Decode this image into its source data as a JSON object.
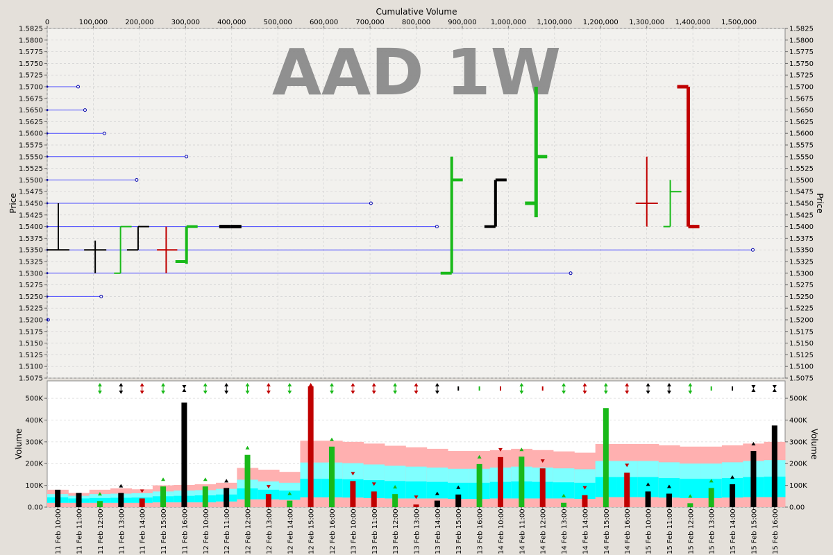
{
  "chart_data": {
    "type": "bar",
    "watermark": "AAD 1W",
    "colors": {
      "up": "#19b919",
      "down": "#c00000",
      "neutral": "#000000",
      "level_line": "#4a4aff",
      "band_outer": "#ffb0b0",
      "band_mid": "#80ffff",
      "band_inner": "#00ffff"
    },
    "price_panel": {
      "title_top": "Cumulative Volume",
      "ylabel": "Price",
      "ylim": [
        1.5075,
        1.5825
      ],
      "y_ticks": [
        "1.5075",
        "1.5100",
        "1.5125",
        "1.5150",
        "1.5175",
        "1.5200",
        "1.5225",
        "1.5250",
        "1.5275",
        "1.5300",
        "1.5325",
        "1.5350",
        "1.5375",
        "1.5400",
        "1.5425",
        "1.5450",
        "1.5475",
        "1.5500",
        "1.5525",
        "1.5550",
        "1.5575",
        "1.5600",
        "1.5625",
        "1.5650",
        "1.5675",
        "1.5700",
        "1.5725",
        "1.5750",
        "1.5775",
        "1.5800",
        "1.5825"
      ],
      "xlim": [
        0,
        1600000
      ],
      "x_ticks": [
        "0",
        "100,000",
        "200,000",
        "300,000",
        "400,000",
        "500,000",
        "600,000",
        "700,000",
        "800,000",
        "900,000",
        "1,000,000",
        "1,100,000",
        "1,200,000",
        "1,300,000",
        "1,400,000",
        "1,500,000"
      ],
      "level_lines": [
        {
          "price": 1.57,
          "volume": 67000
        },
        {
          "price": 1.565,
          "volume": 82000
        },
        {
          "price": 1.56,
          "volume": 124000
        },
        {
          "price": 1.555,
          "volume": 302000
        },
        {
          "price": 1.55,
          "volume": 194000
        },
        {
          "price": 1.545,
          "volume": 702000
        },
        {
          "price": 1.54,
          "volume": 845000
        },
        {
          "price": 1.535,
          "volume": 1530000
        },
        {
          "price": 1.53,
          "volume": 1135000
        },
        {
          "price": 1.525,
          "volume": 117000
        },
        {
          "price": 1.52,
          "volume": 2000
        }
      ]
    },
    "volume_panel": {
      "ylabel": "Volume",
      "ylim": [
        0,
        580000
      ],
      "y_ticks": [
        "0.00",
        "100K",
        "200K",
        "300K",
        "400K",
        "500K"
      ],
      "x_ticks": [
        "11 Feb 10:00",
        "11 Feb 11:00",
        "11 Feb 12:00",
        "11 Feb 13:00",
        "11 Feb 14:00",
        "11 Feb 15:00",
        "11 Feb 16:00",
        "12 Feb 10:00",
        "12 Feb 11:00",
        "12 Feb 12:00",
        "12 Feb 13:00",
        "12 Feb 14:00",
        "12 Feb 15:00",
        "12 Feb 16:00",
        "13 Feb 10:00",
        "13 Feb 11:00",
        "13 Feb 12:00",
        "13 Feb 13:00",
        "13 Feb 14:00",
        "13 Feb 15:00",
        "13 Feb 16:00",
        "14 Feb 10:00",
        "14 Feb 11:00",
        "14 Feb 12:00",
        "14 Feb 13:00",
        "14 Feb 14:00",
        "14 Feb 15:00",
        "14 Feb 16:00",
        "15 Feb 10:00",
        "15 Feb 11:00",
        "15 Feb 12:00",
        "15 Feb 13:00",
        "15 Feb 14:00",
        "15 Feb 15:00",
        "15 Feb 16:00"
      ]
    },
    "bars": [
      {
        "label": "11 Feb 10:00",
        "open": 1.535,
        "high": 1.545,
        "low": 1.535,
        "close": 1.535,
        "volume": 80000,
        "color": "neutral",
        "band": [
          20000,
          45000,
          60000,
          80000
        ],
        "arrow": "none"
      },
      {
        "label": "11 Feb 11:00",
        "open": 1.535,
        "high": 1.537,
        "low": 1.53,
        "close": 1.535,
        "volume": 65000,
        "color": "neutral",
        "band": [
          20000,
          40000,
          52000,
          65000
        ],
        "arrow": "none"
      },
      {
        "label": "11 Feb 12:00",
        "open": 1.53,
        "high": 1.54,
        "low": 1.53,
        "close": 1.54,
        "volume": 28000,
        "color": "up",
        "band": [
          20000,
          42000,
          60000,
          80000
        ],
        "arrow": "updown"
      },
      {
        "label": "11 Feb 13:00",
        "open": 1.535,
        "high": 1.54,
        "low": 1.535,
        "close": 1.54,
        "volume": 65000,
        "color": "neutral",
        "band": [
          20000,
          43000,
          62000,
          86000
        ],
        "arrow": "updown"
      },
      {
        "label": "11 Feb 14:00",
        "open": 1.535,
        "high": 1.54,
        "low": 1.53,
        "close": 1.535,
        "volume": 40000,
        "color": "down",
        "band": [
          20000,
          44000,
          64000,
          82000
        ],
        "arrow": "updown"
      },
      {
        "label": "11 Feb 15:00",
        "open": 1.5325,
        "high": 1.54,
        "low": 1.532,
        "close": 1.54,
        "volume": 95000,
        "color": "up",
        "band": [
          22000,
          50000,
          72000,
          100000
        ],
        "arrow": "updown"
      },
      {
        "label": "11 Feb 16:00",
        "open": 1.54,
        "high": 1.54,
        "low": 1.54,
        "close": 1.54,
        "volume": 480000,
        "color": "neutral",
        "band": [
          22000,
          52000,
          76000,
          102000
        ],
        "arrow": "downup"
      },
      {
        "label": "12 Feb 10:00",
        "open": 1.53,
        "high": 1.555,
        "low": 1.53,
        "close": 1.55,
        "volume": 95000,
        "color": "up",
        "band": [
          22000,
          54000,
          78000,
          105000
        ],
        "arrow": "updown"
      },
      {
        "label": "12 Feb 11:00",
        "open": 1.54,
        "high": 1.55,
        "low": 1.54,
        "close": 1.55,
        "volume": 88000,
        "color": "neutral",
        "band": [
          26000,
          58000,
          84000,
          112000
        ],
        "arrow": "updown"
      },
      {
        "label": "12 Feb 12:00",
        "open": 1.545,
        "high": 1.57,
        "low": 1.542,
        "close": 1.555,
        "volume": 240000,
        "color": "up",
        "band": [
          36000,
          86000,
          126000,
          180000
        ],
        "arrow": "updown"
      },
      {
        "label": "12 Feb 13:00",
        "open": 1.545,
        "high": 1.555,
        "low": 1.54,
        "close": 1.545,
        "volume": 60000,
        "color": "down",
        "band": [
          36000,
          80000,
          118000,
          172000
        ],
        "arrow": "updown"
      },
      {
        "label": "12 Feb 14:00",
        "open": 1.54,
        "high": 1.55,
        "low": 1.54,
        "close": 1.5475,
        "volume": 30000,
        "color": "up",
        "band": [
          34000,
          76000,
          112000,
          162000
        ],
        "arrow": "updown"
      },
      {
        "label": "12 Feb 15:00",
        "open": 1.57,
        "high": 1.57,
        "low": 1.54,
        "close": 1.54,
        "volume": 555000,
        "color": "down",
        "band": [
          45000,
          130000,
          205000,
          305000
        ],
        "arrow": "updown"
      },
      {
        "label": "12 Feb 16:00",
        "open": 1.54,
        "high": 1.545,
        "low": 1.54,
        "close": 1.545,
        "volume": 278000,
        "color": "up",
        "band": [
          45000,
          130000,
          205000,
          305000
        ],
        "arrow": "updown"
      },
      {
        "label": "13 Feb 10:00",
        "open": 1.565,
        "high": 1.565,
        "low": 1.54,
        "close": 1.54,
        "volume": 120000,
        "color": "down",
        "band": [
          44000,
          128000,
          202000,
          300000
        ],
        "arrow": "updown"
      },
      {
        "label": "13 Feb 11:00",
        "open": 1.545,
        "high": 1.545,
        "low": 1.53,
        "close": 1.53,
        "volume": 72000,
        "color": "down",
        "band": [
          42000,
          124000,
          196000,
          292000
        ],
        "arrow": "updown"
      },
      {
        "label": "13 Feb 12:00",
        "open": 1.535,
        "high": 1.537,
        "low": 1.53,
        "close": 1.535,
        "volume": 60000,
        "color": "up",
        "band": [
          40000,
          120000,
          190000,
          282000
        ],
        "arrow": "updown"
      },
      {
        "label": "13 Feb 13:00",
        "open": 1.53,
        "high": 1.535,
        "low": 1.53,
        "close": 1.53,
        "volume": 12000,
        "color": "down",
        "band": [
          40000,
          118000,
          186000,
          275000
        ],
        "arrow": "updown"
      },
      {
        "label": "13 Feb 14:00",
        "open": 1.535,
        "high": 1.535,
        "low": 1.53,
        "close": 1.53,
        "volume": 30000,
        "color": "neutral",
        "band": [
          40000,
          116000,
          182000,
          268000
        ],
        "arrow": "updown"
      },
      {
        "label": "13 Feb 15:00",
        "open": 1.535,
        "high": 1.535,
        "low": 1.53,
        "close": 1.53,
        "volume": 58000,
        "color": "neutral",
        "band": [
          38000,
          112000,
          176000,
          258000
        ],
        "arrow": "flat"
      },
      {
        "label": "13 Feb 16:00",
        "open": 1.53,
        "high": 1.535,
        "low": 1.53,
        "close": 1.535,
        "volume": 198000,
        "color": "up",
        "band": [
          38000,
          112000,
          176000,
          258000
        ],
        "arrow": "flat"
      },
      {
        "label": "14 Feb 10:00",
        "open": 1.54,
        "high": 1.54,
        "low": 1.52,
        "close": 1.527,
        "volume": 230000,
        "color": "down",
        "band": [
          40000,
          116000,
          182000,
          262000
        ],
        "arrow": "flat"
      },
      {
        "label": "14 Feb 11:00",
        "open": 1.527,
        "high": 1.5475,
        "low": 1.527,
        "close": 1.532,
        "volume": 232000,
        "color": "up",
        "band": [
          40000,
          118000,
          186000,
          268000
        ],
        "arrow": "updown"
      },
      {
        "label": "14 Feb 12:00",
        "open": 1.535,
        "high": 1.535,
        "low": 1.527,
        "close": 1.53,
        "volume": 178000,
        "color": "down",
        "band": [
          40000,
          116000,
          182000,
          262000
        ],
        "arrow": "flat"
      },
      {
        "label": "14 Feb 13:00",
        "open": 1.53,
        "high": 1.535,
        "low": 1.53,
        "close": 1.535,
        "volume": 20000,
        "color": "up",
        "band": [
          40000,
          114000,
          178000,
          256000
        ],
        "arrow": "updown"
      },
      {
        "label": "14 Feb 14:00",
        "open": 1.535,
        "high": 1.535,
        "low": 1.525,
        "close": 1.527,
        "volume": 55000,
        "color": "down",
        "band": [
          38000,
          112000,
          174000,
          250000
        ],
        "arrow": "updown"
      },
      {
        "label": "14 Feb 15:00",
        "open": 1.525,
        "high": 1.54,
        "low": 1.525,
        "close": 1.535,
        "volume": 455000,
        "color": "up",
        "band": [
          46000,
          138000,
          212000,
          290000
        ],
        "arrow": "updown"
      },
      {
        "label": "14 Feb 16:00",
        "open": 1.535,
        "high": 1.535,
        "low": 1.53,
        "close": 1.53,
        "volume": 158000,
        "color": "down",
        "band": [
          46000,
          138000,
          212000,
          290000
        ],
        "arrow": "updown"
      },
      {
        "label": "15 Feb 10:00",
        "open": 1.53,
        "high": 1.55,
        "low": 1.53,
        "close": 1.53,
        "volume": 72000,
        "color": "neutral",
        "band": [
          46000,
          138000,
          212000,
          290000
        ],
        "arrow": "updown"
      },
      {
        "label": "15 Feb 11:00",
        "open": 1.535,
        "high": 1.535,
        "low": 1.525,
        "close": 1.53,
        "volume": 62000,
        "color": "neutral",
        "band": [
          44000,
          134000,
          206000,
          284000
        ],
        "arrow": "updown"
      },
      {
        "label": "15 Feb 12:00",
        "open": 1.53,
        "high": 1.535,
        "low": 1.53,
        "close": 1.532,
        "volume": 18000,
        "color": "up",
        "band": [
          42000,
          130000,
          200000,
          278000
        ],
        "arrow": "updown"
      },
      {
        "label": "15 Feb 13:00",
        "open": 1.53,
        "high": 1.535,
        "low": 1.53,
        "close": 1.535,
        "volume": 88000,
        "color": "up",
        "band": [
          42000,
          130000,
          200000,
          278000
        ],
        "arrow": "flat"
      },
      {
        "label": "15 Feb 14:00",
        "open": 1.53,
        "high": 1.535,
        "low": 1.53,
        "close": 1.535,
        "volume": 105000,
        "color": "neutral",
        "band": [
          44000,
          134000,
          206000,
          284000
        ],
        "arrow": "flat"
      },
      {
        "label": "15 Feb 15:00",
        "open": 1.53,
        "high": 1.537,
        "low": 1.53,
        "close": 1.535,
        "volume": 258000,
        "color": "neutral",
        "band": [
          46000,
          138000,
          212000,
          292000
        ],
        "arrow": "downup"
      },
      {
        "label": "15 Feb 16:00",
        "open": 1.535,
        "high": 1.535,
        "low": 1.535,
        "close": 1.535,
        "volume": 375000,
        "color": "neutral",
        "band": [
          46000,
          140000,
          216000,
          300000
        ],
        "arrow": "downup"
      }
    ]
  }
}
